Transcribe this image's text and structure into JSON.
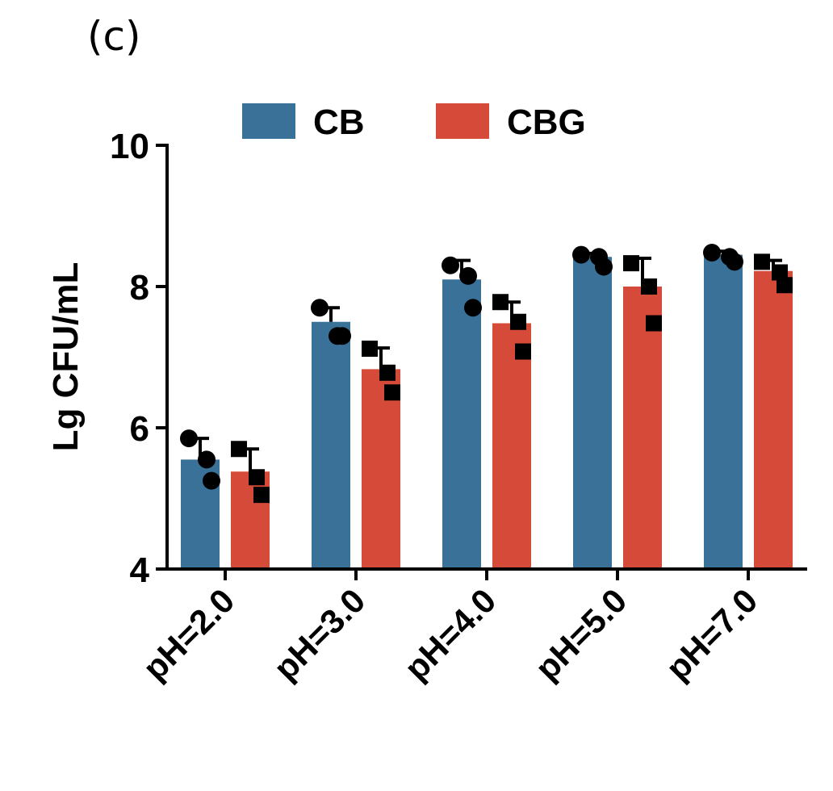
{
  "panel_label": "(c)",
  "chart_data": {
    "type": "bar",
    "title": "",
    "xlabel": "",
    "ylabel": "Lg CFU/mL",
    "ylim": [
      4,
      10
    ],
    "yticks": [
      4,
      6,
      8,
      10
    ],
    "grid": false,
    "legend_position": "top",
    "categories": [
      "pH=2.0",
      "pH=3.0",
      "pH=4.0",
      "pH=5.0",
      "pH=7.0"
    ],
    "series": [
      {
        "name": "CB",
        "color": "#3a7199",
        "marker": "circle",
        "values": [
          5.55,
          7.5,
          8.1,
          8.42,
          8.45
        ],
        "errors": [
          0.3,
          0.2,
          0.27,
          0.05,
          0.05
        ],
        "points": [
          [
            5.85,
            5.55,
            5.25
          ],
          [
            7.7,
            7.3,
            7.3
          ],
          [
            8.3,
            8.15,
            7.7
          ],
          [
            8.45,
            8.42,
            8.28
          ],
          [
            8.48,
            8.42,
            8.35
          ]
        ]
      },
      {
        "name": "CBG",
        "color": "#d64a3a",
        "marker": "square",
        "values": [
          5.38,
          6.83,
          7.48,
          8.0,
          8.22
        ],
        "errors": [
          0.32,
          0.3,
          0.3,
          0.4,
          0.15
        ],
        "points": [
          [
            5.7,
            5.3,
            5.05
          ],
          [
            7.12,
            6.78,
            6.5
          ],
          [
            7.78,
            7.5,
            7.08
          ],
          [
            8.33,
            8.0,
            7.48
          ],
          [
            8.35,
            8.2,
            8.02
          ]
        ]
      }
    ]
  }
}
